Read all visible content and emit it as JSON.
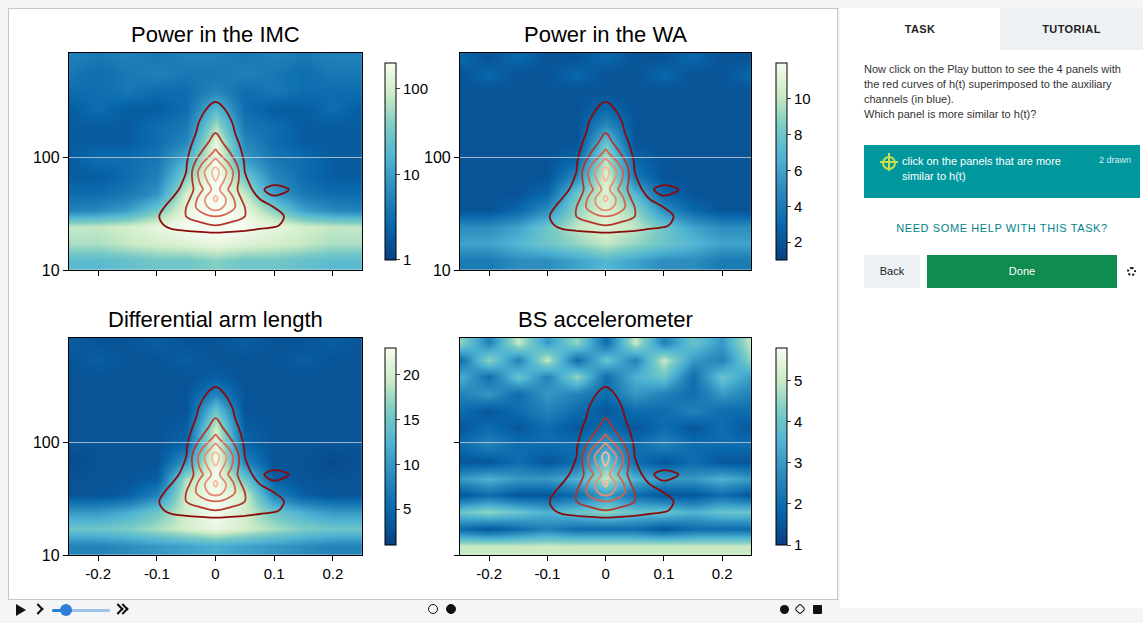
{
  "chart_data": [
    {
      "type": "heatmap",
      "title": "Power in the IMC",
      "log": "y",
      "grid": true,
      "tick_labels": "y",
      "x": [
        -0.25,
        -0.2,
        -0.15,
        -0.1,
        -0.05,
        0,
        0.05,
        0.1,
        0.15,
        0.2,
        0.25
      ],
      "y": [
        12,
        17,
        24,
        34,
        48,
        68,
        96,
        135,
        190,
        270,
        380,
        540,
        760
      ],
      "z": [
        [
          20,
          20,
          25,
          30,
          30,
          40,
          30,
          30,
          25,
          20,
          20
        ],
        [
          60,
          60,
          80,
          100,
          120,
          150,
          120,
          100,
          80,
          60,
          60
        ],
        [
          80,
          80,
          100,
          150,
          200,
          250,
          200,
          150,
          100,
          80,
          80
        ],
        [
          5,
          6,
          10,
          30,
          150,
          250,
          150,
          40,
          10,
          6,
          5
        ],
        [
          3,
          3,
          4,
          8,
          100,
          250,
          80,
          10,
          4,
          3,
          3
        ],
        [
          2,
          2,
          3,
          5,
          40,
          250,
          30,
          6,
          3,
          2,
          2
        ],
        [
          2,
          3,
          3,
          4,
          15,
          200,
          10,
          4,
          3,
          2,
          2
        ],
        [
          2,
          2,
          2,
          3,
          6,
          150,
          6,
          3,
          2,
          2,
          2
        ],
        [
          2,
          2,
          2,
          3,
          4,
          60,
          4,
          3,
          2,
          2,
          2
        ],
        [
          2,
          3,
          2,
          2,
          3,
          20,
          3,
          2,
          2,
          3,
          2
        ],
        [
          3,
          3,
          4,
          3,
          3,
          6,
          3,
          4,
          3,
          3,
          3
        ],
        [
          4,
          3,
          4,
          5,
          4,
          4,
          5,
          4,
          3,
          4,
          4
        ],
        [
          5,
          4,
          5,
          4,
          5,
          5,
          4,
          5,
          4,
          5,
          5
        ]
      ],
      "xlim": [
        -0.25,
        0.25
      ],
      "ylim": [
        10,
        850
      ],
      "xticks": [
        -0.2,
        -0.1,
        0,
        0.1,
        0.2
      ],
      "yticks": [
        10,
        100
      ],
      "colorbar": {
        "range": [
          1,
          200
        ],
        "ticks": [
          1,
          10,
          100
        ],
        "log": true
      }
    },
    {
      "type": "heatmap",
      "title": "Power in the WA",
      "log": "y",
      "grid": true,
      "tick_labels": "y",
      "x": [
        -0.25,
        -0.2,
        -0.15,
        -0.1,
        -0.05,
        0,
        0.05,
        0.1,
        0.15,
        0.2,
        0.25
      ],
      "y": [
        12,
        17,
        24,
        34,
        48,
        68,
        96,
        135,
        190,
        270,
        380,
        540,
        760
      ],
      "z": [
        [
          4,
          4,
          5,
          5,
          6,
          7,
          6,
          5,
          5,
          4,
          4
        ],
        [
          6,
          6,
          7,
          8,
          9,
          10,
          9,
          8,
          7,
          6,
          6
        ],
        [
          5,
          5,
          6,
          8,
          10,
          11,
          10,
          8,
          6,
          5,
          5
        ],
        [
          2,
          2,
          3,
          5,
          9,
          11,
          9,
          5,
          3,
          2,
          2
        ],
        [
          2,
          2,
          2,
          3,
          8,
          11,
          7,
          3,
          2,
          2,
          2
        ],
        [
          2,
          2,
          2,
          2,
          5,
          11,
          4,
          2,
          2,
          2,
          2
        ],
        [
          2,
          2,
          2,
          2,
          3,
          10,
          3,
          2,
          2,
          2,
          2
        ],
        [
          2,
          2,
          2,
          2,
          2,
          8,
          2,
          2,
          2,
          2,
          2
        ],
        [
          2,
          2,
          2,
          2,
          2,
          5,
          2,
          2,
          2,
          2,
          2
        ],
        [
          2,
          2,
          2,
          2,
          2,
          3,
          2,
          2,
          2,
          2,
          2
        ],
        [
          2,
          2,
          2,
          2,
          2,
          2,
          2,
          2,
          2,
          2,
          2
        ],
        [
          2,
          3,
          2,
          2,
          3,
          2,
          2,
          3,
          2,
          2,
          3
        ],
        [
          3,
          2,
          3,
          2,
          2,
          3,
          2,
          2,
          3,
          2,
          2
        ]
      ],
      "xlim": [
        -0.25,
        0.25
      ],
      "ylim": [
        10,
        850
      ],
      "xticks": [
        -0.2,
        -0.1,
        0,
        0.1,
        0.2
      ],
      "yticks": [
        10,
        100
      ],
      "colorbar": {
        "range": [
          1,
          12
        ],
        "ticks": [
          2,
          4,
          6,
          8,
          10
        ]
      }
    },
    {
      "type": "heatmap",
      "title": "Differential arm length",
      "log": "y",
      "grid": true,
      "tick_labels": true,
      "x": [
        -0.25,
        -0.2,
        -0.15,
        -0.1,
        -0.05,
        0,
        0.05,
        0.1,
        0.15,
        0.2,
        0.25
      ],
      "y": [
        12,
        17,
        24,
        34,
        48,
        68,
        96,
        135,
        190,
        270,
        380,
        540,
        760
      ],
      "z": [
        [
          8,
          8,
          9,
          10,
          11,
          12,
          11,
          10,
          9,
          8,
          8
        ],
        [
          15,
          15,
          16,
          18,
          20,
          22,
          20,
          18,
          16,
          15,
          15
        ],
        [
          10,
          10,
          12,
          15,
          20,
          23,
          20,
          15,
          12,
          10,
          10
        ],
        [
          3,
          3,
          4,
          8,
          20,
          23,
          20,
          8,
          4,
          3,
          3
        ],
        [
          3,
          3,
          3,
          4,
          18,
          23,
          15,
          4,
          3,
          3,
          3
        ],
        [
          2,
          3,
          3,
          3,
          10,
          23,
          8,
          3,
          3,
          2,
          3
        ],
        [
          3,
          3,
          3,
          3,
          5,
          22,
          5,
          3,
          3,
          3,
          3
        ],
        [
          3,
          3,
          3,
          3,
          4,
          20,
          4,
          3,
          3,
          3,
          3
        ],
        [
          3,
          3,
          3,
          3,
          3,
          15,
          3,
          3,
          3,
          3,
          3
        ],
        [
          3,
          3,
          3,
          3,
          3,
          8,
          3,
          3,
          3,
          3,
          3
        ],
        [
          3,
          3,
          3,
          3,
          3,
          4,
          3,
          3,
          3,
          3,
          3
        ],
        [
          3,
          4,
          3,
          3,
          4,
          3,
          3,
          3,
          4,
          3,
          3
        ],
        [
          4,
          3,
          3,
          4,
          3,
          3,
          4,
          3,
          3,
          4,
          3
        ]
      ],
      "xlim": [
        -0.25,
        0.25
      ],
      "ylim": [
        10,
        850
      ],
      "xticks": [
        -0.2,
        -0.1,
        0,
        0.1,
        0.2
      ],
      "yticks": [
        10,
        100
      ],
      "colorbar": {
        "range": [
          1,
          23
        ],
        "ticks": [
          5,
          10,
          15,
          20
        ]
      }
    },
    {
      "type": "heatmap",
      "title": "BS accelerometer",
      "log": "y",
      "grid": true,
      "tick_labels": "x",
      "x": [
        -0.25,
        -0.2,
        -0.15,
        -0.1,
        -0.05,
        0,
        0.05,
        0.1,
        0.15,
        0.2,
        0.25
      ],
      "y": [
        12,
        17,
        24,
        34,
        48,
        68,
        96,
        135,
        190,
        270,
        380,
        540,
        760
      ],
      "z": [
        [
          5,
          5,
          5,
          5,
          5,
          5,
          5,
          5,
          5,
          5,
          5
        ],
        [
          2,
          1.5,
          2,
          2.5,
          2,
          2,
          2,
          1.5,
          2,
          2,
          2
        ],
        [
          4,
          4.5,
          4,
          3.5,
          4,
          4.5,
          4,
          4,
          3.5,
          4,
          4
        ],
        [
          1.5,
          2,
          1.5,
          1.5,
          2,
          3,
          2,
          1.5,
          1.5,
          2,
          1.5
        ],
        [
          3,
          3.5,
          3,
          3,
          3.5,
          5,
          3.5,
          3,
          3,
          3.5,
          3
        ],
        [
          1.5,
          1.5,
          2,
          1.5,
          2,
          4,
          2,
          1.5,
          2,
          1.5,
          1.5
        ],
        [
          2,
          2.5,
          2,
          2,
          2,
          3,
          2,
          2.5,
          2,
          2,
          2
        ],
        [
          1.5,
          2,
          1.5,
          2,
          1.5,
          2,
          1.5,
          2,
          1.5,
          2,
          1.5
        ],
        [
          2,
          1.5,
          2,
          2.5,
          2,
          1.5,
          2,
          2,
          2.5,
          2,
          2
        ],
        [
          2.5,
          3,
          2,
          3,
          2.5,
          2,
          3,
          2.5,
          2,
          3,
          2.5
        ],
        [
          3.5,
          2,
          4,
          2.5,
          4.5,
          2,
          3.5,
          4,
          2,
          4,
          3
        ],
        [
          2,
          4.5,
          2.5,
          5,
          2,
          4,
          2.5,
          5,
          3,
          2.5,
          4.5
        ],
        [
          4.5,
          2.5,
          5,
          3,
          4.5,
          2,
          5,
          2.5,
          4,
          3,
          5
        ]
      ],
      "xlim": [
        -0.25,
        0.25
      ],
      "ylim": [
        10,
        850
      ],
      "xticks": [
        -0.2,
        -0.1,
        0,
        0.1,
        0.2
      ],
      "yticks": [
        10,
        100
      ],
      "colorbar": {
        "range": [
          1,
          5.8
        ],
        "ticks": [
          1,
          2,
          3,
          4,
          5
        ]
      }
    }
  ],
  "contours": {
    "x": [
      -0.15,
      -0.1,
      -0.075,
      -0.05,
      -0.025,
      0,
      0.025,
      0.05,
      0.075,
      0.1,
      0.15
    ],
    "y": [
      20,
      25,
      30,
      36,
      43,
      52,
      62,
      75,
      90,
      110,
      135,
      165,
      200,
      250,
      300,
      380
    ],
    "z": [
      [
        0,
        0,
        0,
        0,
        0,
        0,
        0,
        0,
        0,
        0,
        0
      ],
      [
        0,
        0.05,
        0.15,
        0.2,
        0.25,
        0.3,
        0.25,
        0.2,
        0.15,
        0.12,
        0
      ],
      [
        0,
        0.08,
        0.2,
        0.3,
        0.4,
        0.5,
        0.4,
        0.3,
        0.2,
        0.15,
        0
      ],
      [
        0,
        0.05,
        0.15,
        0.3,
        0.6,
        0.8,
        0.6,
        0.3,
        0.15,
        0.1,
        0
      ],
      [
        0,
        0,
        0.1,
        0.2,
        0.6,
        0.95,
        0.6,
        0.2,
        0.1,
        0.05,
        0
      ],
      [
        0,
        0,
        0.05,
        0.15,
        0.45,
        0.8,
        0.45,
        0.15,
        0.05,
        0.2,
        0
      ],
      [
        0,
        0,
        0.03,
        0.12,
        0.55,
        0.9,
        0.55,
        0.12,
        0.03,
        0,
        0
      ],
      [
        0,
        0,
        0.02,
        0.1,
        0.6,
        1,
        0.6,
        0.1,
        0.02,
        0,
        0
      ],
      [
        0,
        0,
        0,
        0.08,
        0.45,
        0.8,
        0.45,
        0.08,
        0,
        0,
        0
      ],
      [
        0,
        0,
        0,
        0.05,
        0.3,
        0.55,
        0.3,
        0.05,
        0,
        0,
        0
      ],
      [
        0,
        0,
        0,
        0.03,
        0.2,
        0.4,
        0.2,
        0.03,
        0,
        0,
        0
      ],
      [
        0,
        0,
        0,
        0,
        0.15,
        0.3,
        0.15,
        0,
        0,
        0,
        0
      ],
      [
        0,
        0,
        0,
        0,
        0.12,
        0.25,
        0.12,
        0,
        0,
        0,
        0
      ],
      [
        0,
        0,
        0,
        0,
        0.08,
        0.18,
        0.08,
        0,
        0,
        0,
        0
      ],
      [
        0,
        0,
        0,
        0,
        0.05,
        0.12,
        0.05,
        0,
        0,
        0,
        0
      ],
      [
        0,
        0,
        0,
        0,
        0,
        0,
        0,
        0,
        0,
        0,
        0
      ]
    ],
    "levels": [
      0.1,
      0.3,
      0.5,
      0.7,
      0.9
    ]
  },
  "ui": {
    "tabs": [
      "TASK",
      "TUTORIAL"
    ],
    "instructions": [
      "Now click on the Play button to see the 4 panels with the red curves of h(t) superimposed to the auxiliary channels (in blue).",
      "Which panel is more similar to h(t)?"
    ],
    "task_button": "click on the panels that are more similar to h(t)",
    "badge": {
      "value": 2,
      "label": "2 drawn"
    },
    "help": "NEED SOME HELP WITH THIS TASK?",
    "back": "Back",
    "done": "Done"
  }
}
